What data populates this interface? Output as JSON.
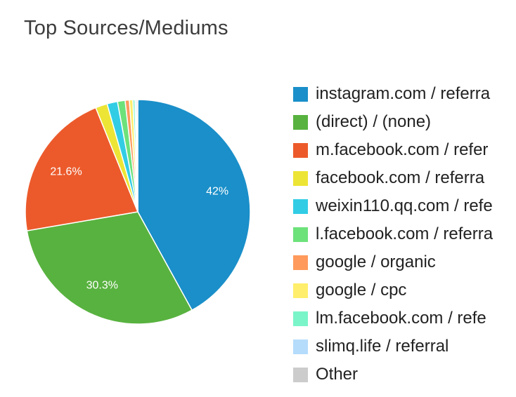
{
  "title": "Top Sources/Mediums",
  "chart_data": {
    "type": "pie",
    "title": "Top Sources/Mediums",
    "legend_position": "right",
    "slices": [
      {
        "label": "instagram.com / referral",
        "legend_text": "instagram.com / referra",
        "value": 42.0,
        "color": "#1a8fc9",
        "data_label": "42%"
      },
      {
        "label": "(direct) / (none)",
        "legend_text": "(direct) / (none)",
        "value": 30.3,
        "color": "#58b23f",
        "data_label": "30.3%"
      },
      {
        "label": "m.facebook.com / referral",
        "legend_text": "m.facebook.com / refer",
        "value": 21.6,
        "color": "#ec5a2b",
        "data_label": "21.6%"
      },
      {
        "label": "facebook.com / referral",
        "legend_text": "facebook.com / referra",
        "value": 1.7,
        "color": "#ede535",
        "data_label": ""
      },
      {
        "label": "weixin110.qq.com / referral",
        "legend_text": "weixin110.qq.com / refe",
        "value": 1.5,
        "color": "#32cde5",
        "data_label": ""
      },
      {
        "label": "l.facebook.com / referral",
        "legend_text": "l.facebook.com / referra",
        "value": 1.1,
        "color": "#6de27b",
        "data_label": ""
      },
      {
        "label": "google / organic",
        "legend_text": "google / organic",
        "value": 0.6,
        "color": "#ff9a5c",
        "data_label": ""
      },
      {
        "label": "google / cpc",
        "legend_text": "google / cpc",
        "value": 0.5,
        "color": "#ffee6b",
        "data_label": ""
      },
      {
        "label": "lm.facebook.com / referral",
        "legend_text": "lm.facebook.com / refe",
        "value": 0.3,
        "color": "#7af5c9",
        "data_label": ""
      },
      {
        "label": "slimq.life / referral",
        "legend_text": "slimq.life / referral",
        "value": 0.2,
        "color": "#b5dcfb",
        "data_label": ""
      },
      {
        "label": "Other",
        "legend_text": "Other",
        "value": 0.2,
        "color": "#cccccc",
        "data_label": ""
      }
    ]
  }
}
